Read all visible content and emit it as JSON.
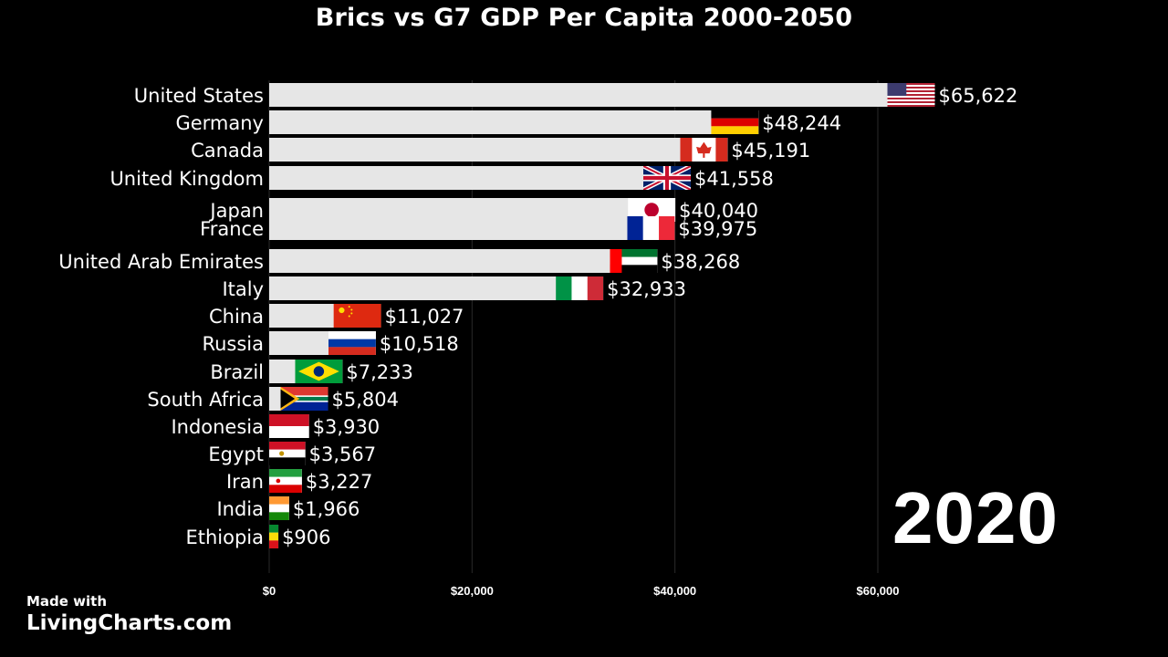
{
  "chart_data": {
    "type": "bar",
    "orientation": "horizontal",
    "title": "Brics vs G7 GDP Per Capita 2000-2050",
    "year": "2020",
    "categories": [
      "United States",
      "Germany",
      "Canada",
      "United Kingdom",
      "Japan",
      "France",
      "United Arab Emirates",
      "Italy",
      "China",
      "Russia",
      "Brazil",
      "South Africa",
      "Indonesia",
      "Egypt",
      "Iran",
      "India",
      "Ethiopia"
    ],
    "values": [
      65622,
      48244,
      45191,
      41558,
      40040,
      39975,
      38268,
      32933,
      11027,
      10518,
      7233,
      5804,
      3930,
      3567,
      3227,
      1966,
      906
    ],
    "value_labels": [
      "$65,622",
      "$48,244",
      "$45,191",
      "$41,558",
      "$40,040",
      "$39,975",
      "$38,268",
      "$32,933",
      "$11,027",
      "$10,518",
      "$7,233",
      "$5,804",
      "$3,930",
      "$3,567",
      "$3,227",
      "$1,966",
      "$906"
    ],
    "flags": [
      "us-flag",
      "germany-flag",
      "canada-flag",
      "uk-flag",
      "japan-flag",
      "france-flag",
      "uae-flag",
      "italy-flag",
      "china-flag",
      "russia-flag",
      "brazil-flag",
      "south-africa-flag",
      "indonesia-flag",
      "egypt-flag",
      "iran-flag",
      "india-flag",
      "ethiopia-flag"
    ],
    "xlim": [
      0,
      70000
    ],
    "xticks": [
      0,
      20000,
      40000,
      60000
    ],
    "xtick_labels": [
      "$0",
      "$20,000",
      "$40,000",
      "$60,000"
    ],
    "grid": true,
    "colors": {
      "background": "#000000",
      "bar": "#e6e6e6",
      "text": "#ffffff",
      "grid": "#2a2a2a"
    }
  },
  "credit": {
    "made_with": "Made with",
    "site": "LivingCharts.com"
  }
}
